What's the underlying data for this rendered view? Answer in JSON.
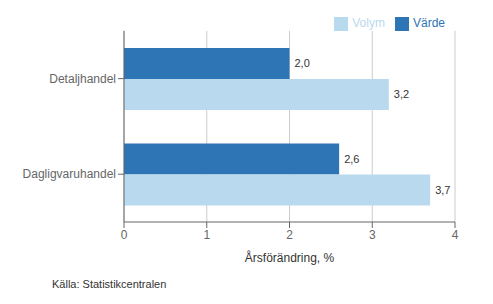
{
  "chart_data": {
    "type": "bar",
    "orientation": "horizontal",
    "categories": [
      "Detaljhandel",
      "Dagligvaruhandel"
    ],
    "series": [
      {
        "name": "Värde",
        "color": "#2e75b6",
        "values": [
          2.0,
          2.6
        ],
        "value_labels": [
          "2,0",
          "2,6"
        ]
      },
      {
        "name": "Volym",
        "color": "#b8d9ee",
        "values": [
          3.2,
          3.7
        ],
        "value_labels": [
          "3,2",
          "3,7"
        ]
      }
    ],
    "xlabel": "Årsförändring, %",
    "xlim": [
      0,
      4
    ],
    "xticks": [
      0,
      1,
      2,
      3,
      4
    ],
    "grid": true,
    "legend": "upper right",
    "data_labels": true,
    "annotations": [
      "Källa: Statistikcentralen"
    ]
  }
}
